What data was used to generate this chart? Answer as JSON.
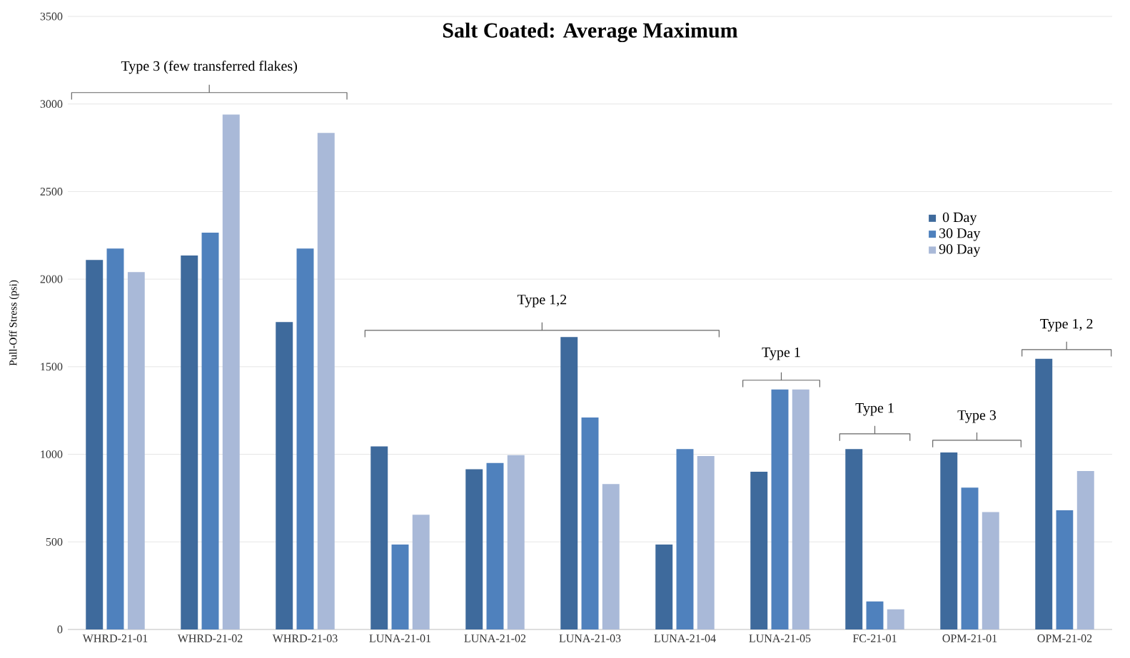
{
  "chart_data": {
    "type": "bar",
    "title": "Salt Coated: Average Maximum",
    "ylabel": "Pull-Off Stress (psi)",
    "categories": [
      "WHRD-21-01",
      "WHRD-21-02",
      "WHRD-21-03",
      "LUNA-21-01",
      "LUNA-21-02",
      "LUNA-21-03",
      "LUNA-21-04",
      "LUNA-21-05",
      "FC-21-01",
      "OPM-21-01",
      "OPM-21-02"
    ],
    "series": [
      {
        "name": "0 Day",
        "color": "#3e6a9c",
        "values": [
          2110,
          2135,
          1755,
          1045,
          915,
          1670,
          485,
          900,
          1030,
          1010,
          1545
        ]
      },
      {
        "name": "30 Day",
        "color": "#4f81bd",
        "values": [
          2175,
          2265,
          2175,
          485,
          950,
          1210,
          1030,
          1370,
          160,
          810,
          680
        ]
      },
      {
        "name": "90 Day",
        "color": "#a9b9d8",
        "values": [
          2040,
          2940,
          2835,
          655,
          995,
          830,
          990,
          1370,
          115,
          670,
          905
        ]
      }
    ],
    "annotations": [
      "Type 3 (few transferred flakes)",
      "Type 1,2",
      "Type 1",
      "Type 1",
      "Type 3",
      "Type 1, 2"
    ],
    "ylim": [
      0,
      3500
    ],
    "yticks": [
      0,
      500,
      1000,
      1500,
      2000,
      2500,
      3000,
      3500
    ],
    "grid": "y",
    "legend": "right"
  }
}
